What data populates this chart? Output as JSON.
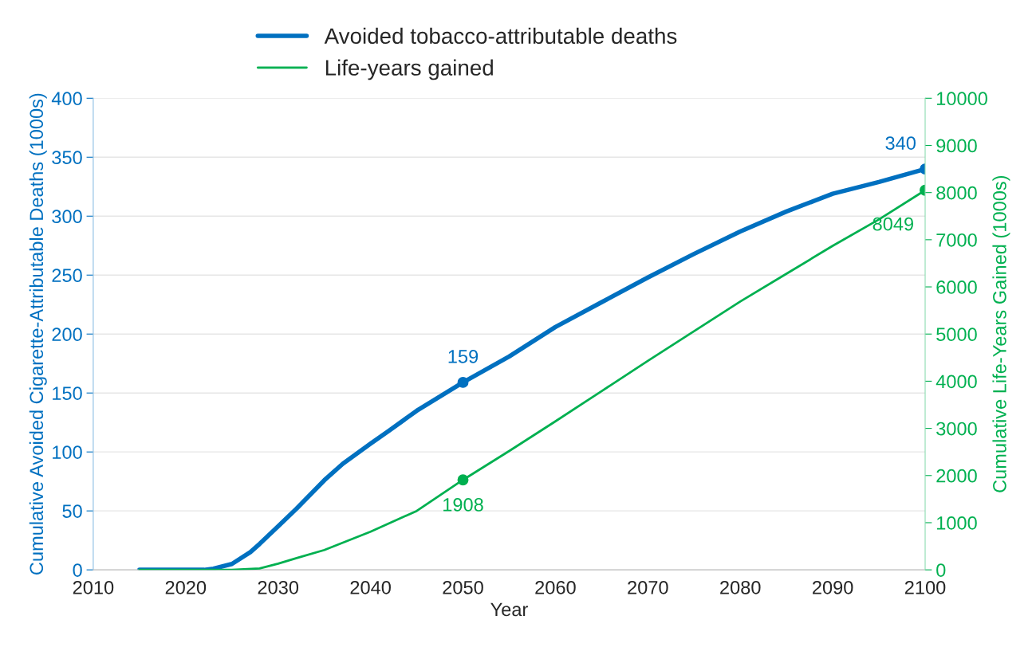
{
  "chart_data": {
    "type": "line",
    "xlabel": "Year",
    "ylabel": "Cumulative Avoided Cigarette-Attributable Deaths (1000s)",
    "y2label": "Cumulative Life-Years Gained (1000s)",
    "xlim": [
      2010,
      2100
    ],
    "xticks": [
      2010,
      2020,
      2030,
      2040,
      2050,
      2060,
      2070,
      2080,
      2090,
      2100
    ],
    "ylim": [
      0,
      400
    ],
    "yticks": [
      0,
      50,
      100,
      150,
      200,
      250,
      300,
      350,
      400
    ],
    "y2lim": [
      0,
      10000
    ],
    "y2ticks": [
      0,
      1000,
      2000,
      3000,
      4000,
      5000,
      6000,
      7000,
      8000,
      9000,
      10000
    ],
    "grid": "y",
    "legend": "top",
    "line_style": "solid",
    "series": [
      {
        "name": "Avoided tobacco-attributable deaths",
        "color": "#0070c0",
        "x": [
          2015,
          2018,
          2020,
          2022,
          2023,
          2025,
          2027,
          2028,
          2030,
          2032,
          2035,
          2037,
          2040,
          2042,
          2045,
          2050,
          2055,
          2060,
          2065,
          2070,
          2075,
          2080,
          2085,
          2090,
          2095,
          2100
        ],
        "values": [
          0,
          0,
          0,
          0,
          1,
          5,
          15,
          22,
          37,
          52,
          76,
          90,
          107,
          118,
          135,
          159,
          181,
          206,
          227,
          248,
          268,
          287,
          304,
          319,
          329,
          340
        ],
        "value_labels": [
          null,
          null,
          null,
          null,
          null,
          null,
          null,
          null,
          null,
          null,
          null,
          null,
          null,
          null,
          null,
          "159",
          null,
          null,
          null,
          null,
          null,
          null,
          null,
          null,
          null,
          "340"
        ]
      },
      {
        "name": "Life-years gained",
        "color": "#00b050",
        "axis": "y2",
        "x": [
          2015,
          2020,
          2025,
          2028,
          2030,
          2032,
          2035,
          2040,
          2045,
          2050,
          2055,
          2060,
          2065,
          2070,
          2075,
          2080,
          2085,
          2090,
          2095,
          2100
        ],
        "values": [
          0,
          0,
          0,
          30,
          130,
          250,
          420,
          810,
          1250,
          1908,
          2520,
          3150,
          3790,
          4430,
          5060,
          5690,
          6280,
          6870,
          7430,
          8049
        ],
        "value_labels": [
          null,
          null,
          null,
          null,
          null,
          null,
          null,
          null,
          null,
          "1908",
          null,
          null,
          null,
          null,
          null,
          null,
          null,
          null,
          null,
          "8049"
        ]
      }
    ]
  }
}
